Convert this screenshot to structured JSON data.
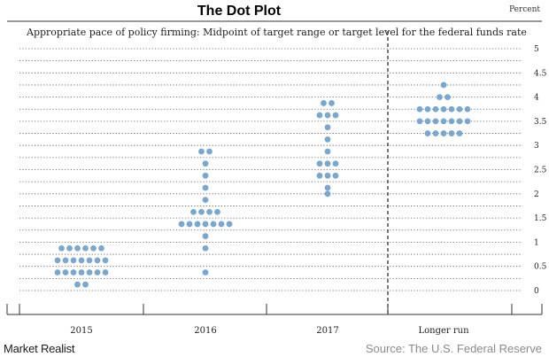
{
  "header": {
    "title": "The Dot Plot",
    "unit": "Percent",
    "subtitle": "Appropriate pace of policy firming: Midpoint of target range or target level for the federal funds rate"
  },
  "footer": {
    "brand": "Market Realist",
    "source": "Source: The U.S. Federal Reserve"
  },
  "chart_data": {
    "type": "scatter",
    "title": "The Dot Plot",
    "ylabel": "Percent",
    "ylim": [
      0,
      5
    ],
    "yticks": [
      "0",
      "0.5",
      "1",
      "1.5",
      "2",
      "2.5",
      "3",
      "3.5",
      "4",
      "4.5",
      "5"
    ],
    "grid": true,
    "categories": [
      "2015",
      "2016",
      "2017",
      "Longer run"
    ],
    "dot_color": "#7ba7cd",
    "columns": [
      {
        "category": "2015",
        "rows": [
          {
            "value": 0.125,
            "count": 2
          },
          {
            "value": 0.375,
            "count": 7
          },
          {
            "value": 0.625,
            "count": 7
          },
          {
            "value": 0.875,
            "count": 6
          }
        ]
      },
      {
        "category": "2016",
        "rows": [
          {
            "value": 0.375,
            "count": 1
          },
          {
            "value": 0.875,
            "count": 1
          },
          {
            "value": 1.125,
            "count": 1
          },
          {
            "value": 1.375,
            "count": 7
          },
          {
            "value": 1.625,
            "count": 4
          },
          {
            "value": 1.875,
            "count": 1
          },
          {
            "value": 2.125,
            "count": 1
          },
          {
            "value": 2.375,
            "count": 1
          },
          {
            "value": 2.625,
            "count": 1
          },
          {
            "value": 2.875,
            "count": 2
          }
        ]
      },
      {
        "category": "2017",
        "rows": [
          {
            "value": 2.0,
            "count": 1
          },
          {
            "value": 2.125,
            "count": 1
          },
          {
            "value": 2.375,
            "count": 3
          },
          {
            "value": 2.625,
            "count": 3
          },
          {
            "value": 2.875,
            "count": 1
          },
          {
            "value": 3.125,
            "count": 1
          },
          {
            "value": 3.375,
            "count": 1
          },
          {
            "value": 3.625,
            "count": 3
          },
          {
            "value": 3.875,
            "count": 2
          }
        ]
      },
      {
        "category": "Longer run",
        "rows": [
          {
            "value": 3.25,
            "count": 5
          },
          {
            "value": 3.5,
            "count": 7
          },
          {
            "value": 3.75,
            "count": 7
          },
          {
            "value": 4.0,
            "count": 2
          },
          {
            "value": 4.25,
            "count": 1
          }
        ]
      }
    ]
  }
}
